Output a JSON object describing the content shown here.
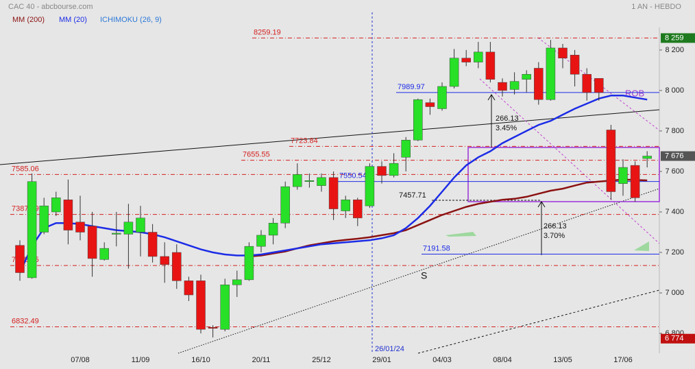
{
  "chart_data": {
    "type": "candlestick",
    "title": "CAC 40 - abcbourse.com",
    "period": "1 AN - HEBDO",
    "indicator": {
      "name": "ICHIMOKU (26, 9)",
      "color": "#2b78d8"
    },
    "up_color": "#27e027",
    "down_color": "#e81414",
    "categories": [
      null,
      null,
      null,
      null,
      null,
      "07/08",
      null,
      null,
      null,
      null,
      "11/09",
      null,
      null,
      null,
      null,
      "16/10",
      null,
      null,
      null,
      null,
      "20/11",
      null,
      null,
      null,
      null,
      "25/12",
      null,
      null,
      null,
      null,
      "29/01",
      null,
      null,
      null,
      null,
      "04/03",
      null,
      null,
      null,
      null,
      "08/04",
      null,
      null,
      null,
      null,
      "13/05",
      null,
      null,
      null,
      null,
      "17/06",
      null,
      null
    ],
    "open": [
      7235,
      7075,
      7300,
      7400,
      7460,
      7350,
      7330,
      7165,
      7290,
      7290,
      7300,
      7300,
      7180,
      7200,
      7060,
      7060,
      6830,
      6820,
      7040,
      7065,
      7230,
      7285,
      7345,
      7525,
      7555,
      7530,
      7570,
      7405,
      7460,
      7430,
      7625,
      7580,
      7670,
      7755,
      7940,
      7910,
      8020,
      8160,
      8140,
      8190,
      8040,
      8005,
      8055,
      8110,
      7955,
      8210,
      8175,
      8080,
      8060,
      7805,
      7540,
      7630,
      7664
    ],
    "high": [
      7260,
      7590,
      7470,
      7500,
      7560,
      7480,
      7400,
      7250,
      7400,
      7440,
      7430,
      7340,
      7250,
      7240,
      7080,
      7090,
      6840,
      7070,
      7110,
      7250,
      7310,
      7370,
      7550,
      7640,
      7590,
      7590,
      7600,
      7480,
      7470,
      7640,
      7650,
      7690,
      7770,
      7960,
      7960,
      8040,
      8205,
      8200,
      8240,
      8240,
      8060,
      8090,
      8100,
      8140,
      8250,
      8230,
      8200,
      8110,
      8060,
      7830,
      7660,
      7650,
      7700
    ],
    "low": [
      7060,
      7070,
      7290,
      7380,
      7240,
      7260,
      7080,
      7160,
      7230,
      7120,
      7180,
      7150,
      7050,
      7020,
      6960,
      6800,
      6780,
      6810,
      6980,
      7060,
      7200,
      7240,
      7320,
      7510,
      7520,
      7500,
      7360,
      7370,
      7330,
      7420,
      7540,
      7570,
      7600,
      7750,
      7880,
      7900,
      8010,
      8120,
      8110,
      8040,
      7970,
      7980,
      7990,
      7930,
      7950,
      8110,
      8020,
      7950,
      7950,
      7460,
      7480,
      7450,
      7620
    ],
    "close": [
      7100,
      7550,
      7430,
      7470,
      7310,
      7300,
      7170,
      7220,
      7295,
      7350,
      7370,
      7180,
      7140,
      7060,
      6990,
      6820,
      6825,
      7040,
      7065,
      7230,
      7285,
      7345,
      7525,
      7585,
      7555,
      7570,
      7415,
      7460,
      7370,
      7625,
      7580,
      7640,
      7755,
      7955,
      7920,
      8020,
      8160,
      8140,
      8190,
      8055,
      8000,
      8045,
      8080,
      7955,
      8210,
      8160,
      8080,
      7990,
      7990,
      7500,
      7620,
      7470,
      7676
    ],
    "lines": [
      {
        "name": "MM (200)",
        "color": "#8b1212",
        "values": [
          null,
          null,
          null,
          null,
          null,
          null,
          null,
          null,
          null,
          null,
          null,
          null,
          null,
          null,
          null,
          null,
          null,
          null,
          null,
          7180,
          7185,
          7195,
          7205,
          7220,
          7235,
          7245,
          7255,
          7262,
          7268,
          7275,
          7285,
          7295,
          7310,
          7335,
          7360,
          7385,
          7405,
          7425,
          7440,
          7450,
          7460,
          7465,
          7475,
          7490,
          7505,
          7515,
          7530,
          7545,
          7550,
          7555,
          7560,
          7558,
          7556
        ]
      },
      {
        "name": "MM (20)",
        "color": "#1c2ce6",
        "values": [
          7100,
          7230,
          7320,
          7345,
          7345,
          7340,
          7330,
          7320,
          7310,
          7305,
          7300,
          7290,
          7275,
          7255,
          7235,
          7215,
          7200,
          7190,
          7185,
          7185,
          7190,
          7200,
          7210,
          7220,
          7230,
          7240,
          7245,
          7250,
          7255,
          7260,
          7270,
          7285,
          7320,
          7370,
          7430,
          7500,
          7570,
          7630,
          7670,
          7700,
          7740,
          7770,
          7800,
          7830,
          7850,
          7880,
          7910,
          7935,
          7960,
          7975,
          7975,
          7965,
          7955
        ]
      }
    ],
    "levels": [
      {
        "value": 8259.19,
        "color": "#d42020"
      },
      {
        "value": 7989.97,
        "color": "#1c2ce6"
      },
      {
        "value": 7723.84,
        "color": "#d42020"
      },
      {
        "value": 7655.55,
        "color": "#d42020"
      },
      {
        "value": 7585.06,
        "color": "#d42020"
      },
      {
        "value": 7550.54,
        "color": "#1c2ce6"
      },
      {
        "value": 7457.71,
        "color": "#111111"
      },
      {
        "value": 7387.79,
        "color": "#d42020"
      },
      {
        "value": 7135.25,
        "color": "#d42020"
      },
      {
        "value": 7191.58,
        "color": "#1c2ce6"
      },
      {
        "value": 6832.49,
        "color": "#d42020"
      }
    ],
    "price_tags": [
      {
        "value": 8259,
        "label": "8 259",
        "color": "#1e7a1e"
      },
      {
        "value": 7676,
        "label": "7 676",
        "color": "#555555"
      },
      {
        "value": 6774,
        "label": "6 774",
        "color": "#c01010"
      }
    ],
    "annotations": [
      "266.13",
      "3.45%",
      "266.13",
      "3.70%",
      "ROB",
      "S"
    ],
    "marker_date": "26/01/24",
    "ylim": [
      6702,
      8447
    ],
    "yticks": [
      {
        "value": 6800,
        "label": "6 800"
      },
      {
        "value": 7000,
        "label": "7 000"
      },
      {
        "value": 7200,
        "label": "7 200"
      },
      {
        "value": 7400,
        "label": "7 400"
      },
      {
        "value": 7600,
        "label": "7 600"
      },
      {
        "value": 7800,
        "label": "7 800"
      },
      {
        "value": 8000,
        "label": "8 000"
      },
      {
        "value": 8200,
        "label": "8 200"
      }
    ]
  }
}
